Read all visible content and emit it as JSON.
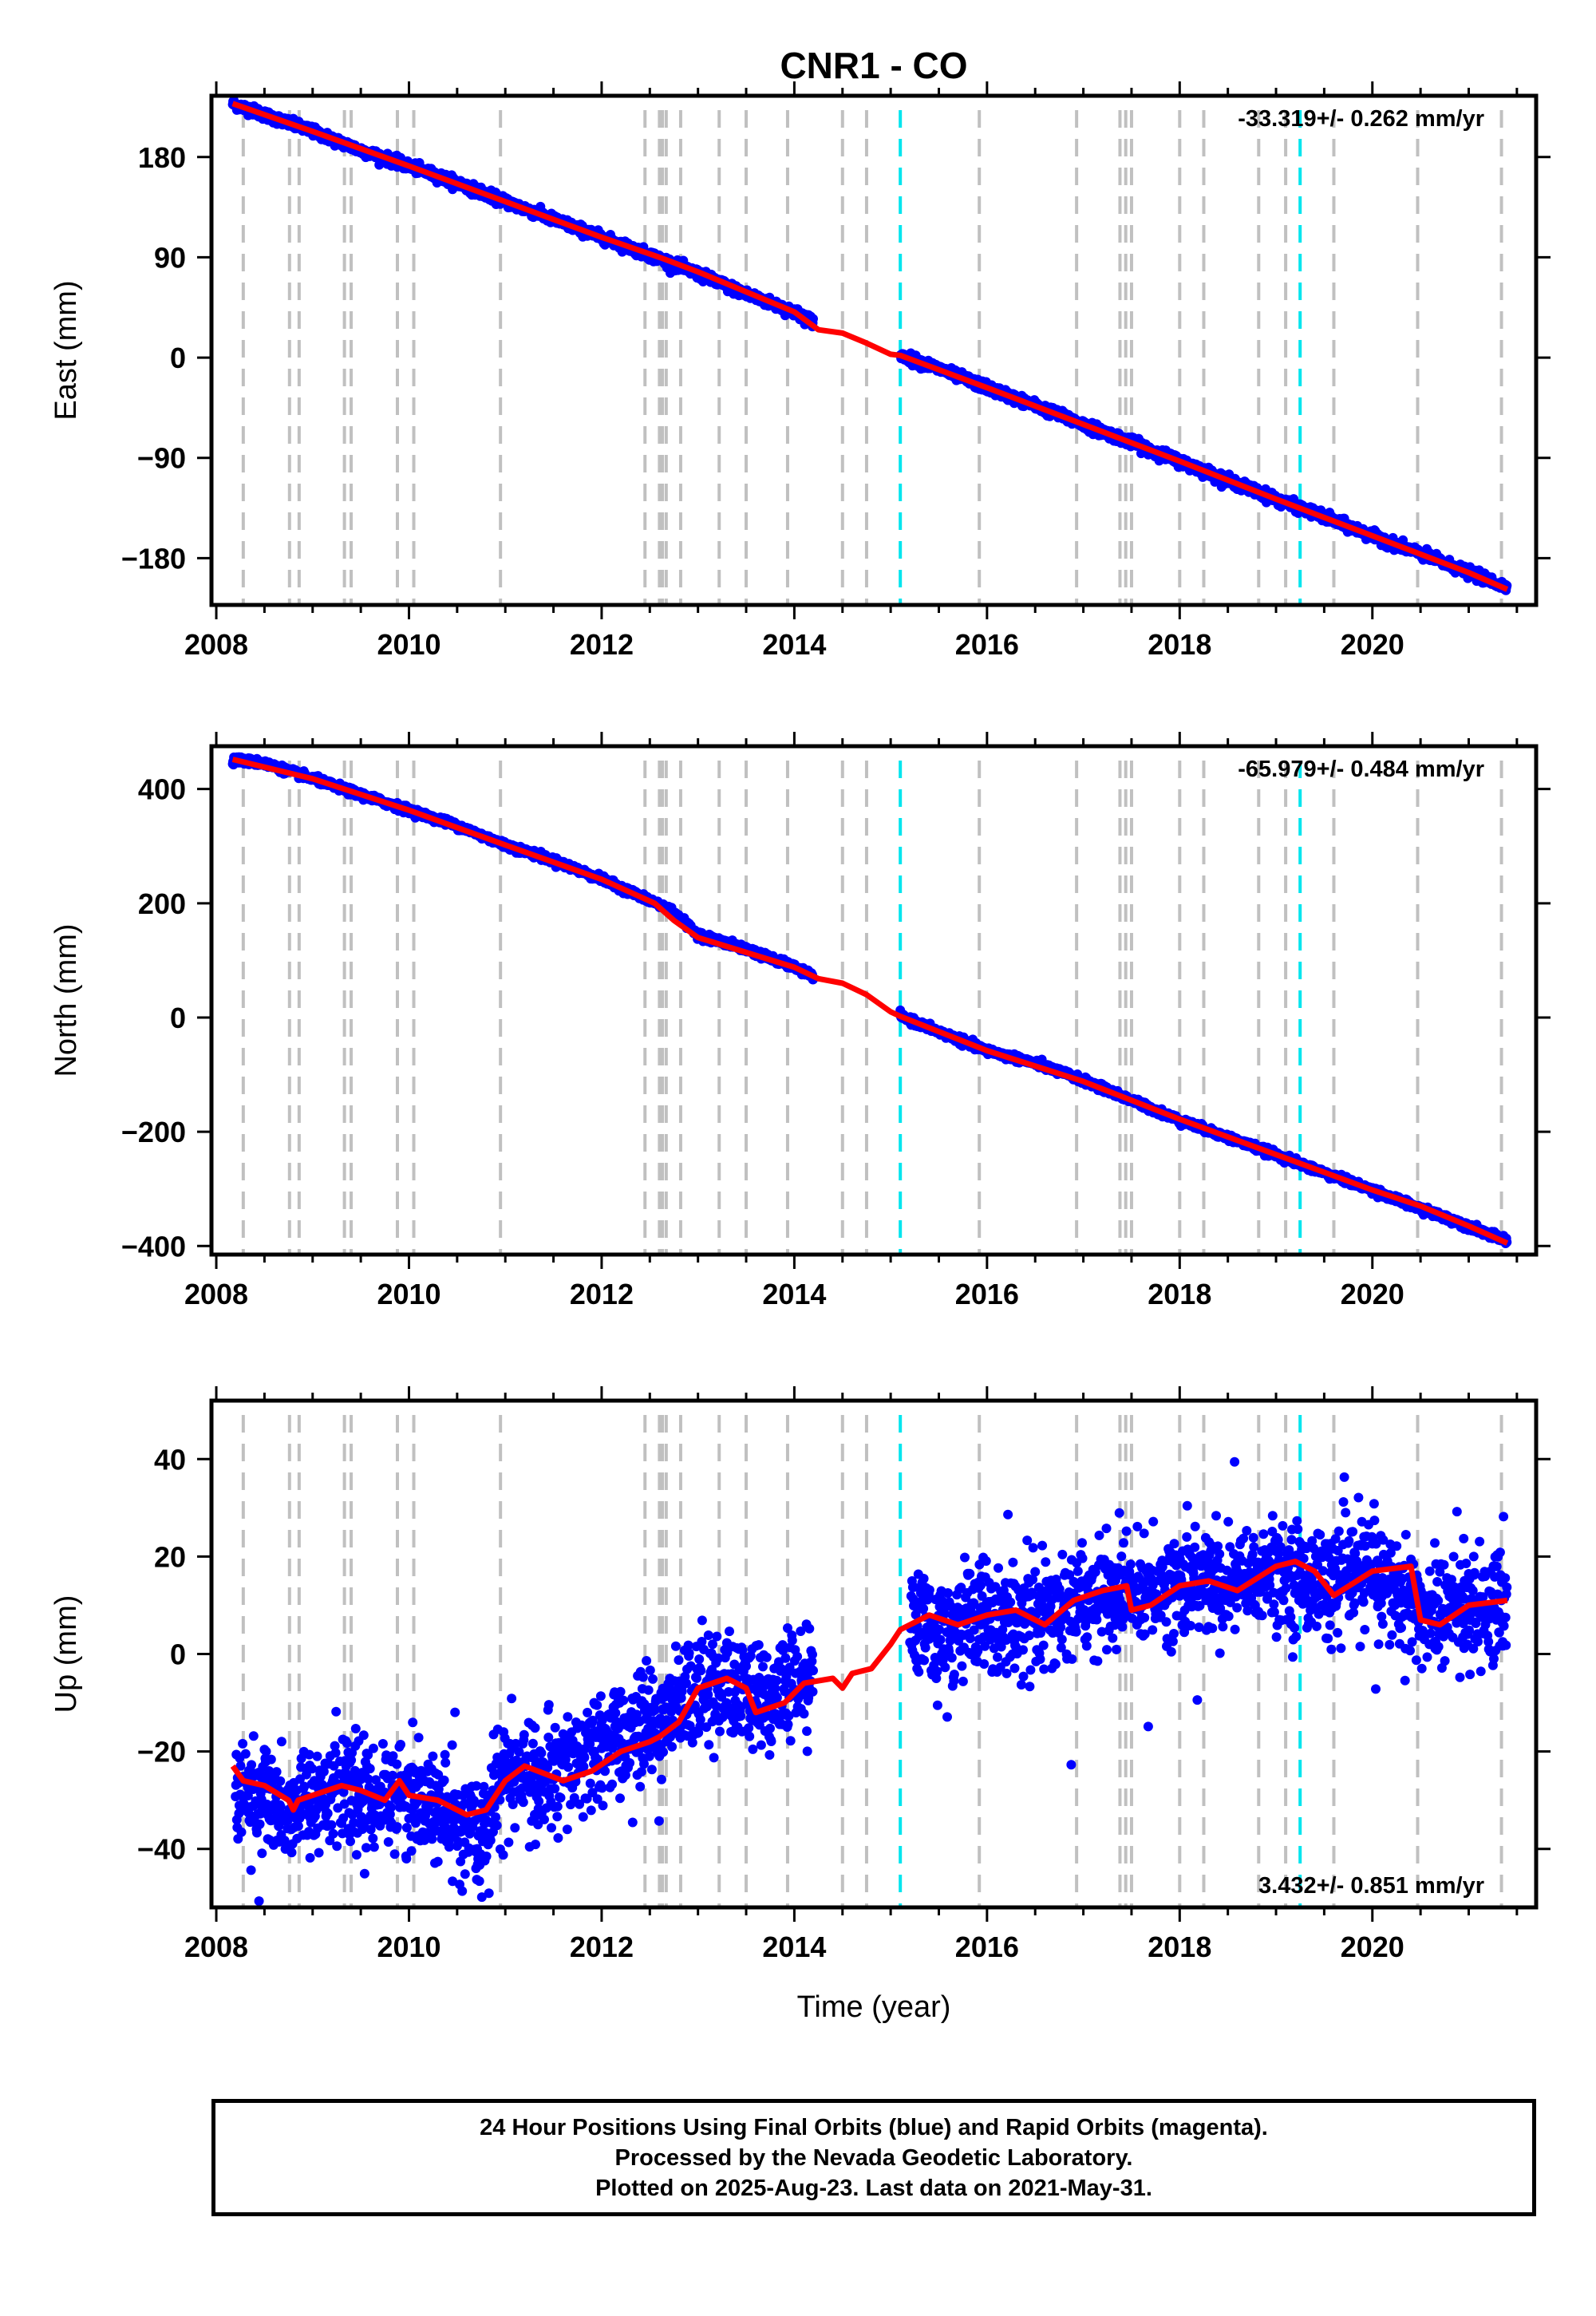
{
  "title": "CNR1 - CO",
  "footer": {
    "line1": "24 Hour Positions Using Final Orbits (blue) and Rapid Orbits (magenta).",
    "line2": "Processed by the Nevada Geodetic Laboratory.",
    "line3": "Plotted on 2025-Aug-23. Last data on 2021-May-31."
  },
  "colors": {
    "final_points": "#0000ff",
    "model_line": "#ff0000",
    "equipment_change": "#c0c0c0",
    "earthquake_event": "#00e5ee"
  },
  "chart_data": [
    {
      "type": "scatter",
      "ylabel": "East (mm)",
      "xlabel": "",
      "xlim": [
        2007.95,
        2021.7
      ],
      "ylim": [
        -222,
        235
      ],
      "x_ticks": [
        2008,
        2010,
        2012,
        2014,
        2016,
        2018,
        2020
      ],
      "y_ticks": [
        -180,
        -90,
        0,
        90,
        180
      ],
      "rate": "-33.319+/- 0.262 mm/yr",
      "rate_position": "top-right",
      "series": [
        {
          "values": [
            [
              2008.17,
              228
            ],
            [
              2008.5,
              218
            ],
            [
              2009.0,
              203
            ],
            [
              2009.5,
              186
            ],
            [
              2010.0,
              172
            ],
            [
              2010.5,
              157
            ],
            [
              2011.0,
              140
            ],
            [
              2011.5,
              124
            ],
            [
              2012.0,
              108
            ],
            [
              2012.5,
              92
            ],
            [
              2013.0,
              75
            ],
            [
              2013.5,
              57
            ],
            [
              2014.0,
              41
            ],
            [
              2014.2,
              32
            ],
            [
              2015.1,
              2
            ],
            [
              2015.5,
              -10
            ],
            [
              2016.0,
              -27
            ],
            [
              2016.5,
              -43
            ],
            [
              2017.0,
              -60
            ],
            [
              2017.5,
              -76
            ],
            [
              2018.0,
              -93
            ],
            [
              2018.5,
              -110
            ],
            [
              2019.0,
              -127
            ],
            [
              2019.5,
              -143
            ],
            [
              2020.0,
              -160
            ],
            [
              2020.5,
              -176
            ],
            [
              2021.0,
              -193
            ],
            [
              2021.4,
              -206
            ]
          ]
        },
        {
          "values": [
            [
              2008.17,
              228
            ],
            [
              2009.0,
              203
            ],
            [
              2010.0,
              172
            ],
            [
              2011.0,
              140
            ],
            [
              2012.0,
              108
            ],
            [
              2012.6,
              90
            ],
            [
              2013.0,
              77
            ],
            [
              2014.0,
              41
            ],
            [
              2014.25,
              25
            ],
            [
              2014.5,
              22
            ],
            [
              2014.75,
              13
            ],
            [
              2015.0,
              3
            ],
            [
              2015.1,
              2
            ],
            [
              2016.0,
              -27
            ],
            [
              2017.0,
              -60
            ],
            [
              2018.0,
              -93
            ],
            [
              2019.0,
              -127
            ],
            [
              2020.0,
              -160
            ],
            [
              2021.0,
              -193
            ],
            [
              2021.4,
              -208
            ]
          ]
        }
      ]
    },
    {
      "type": "scatter",
      "ylabel": "North (mm)",
      "xlabel": "",
      "xlim": [
        2007.95,
        2021.7
      ],
      "ylim": [
        -415,
        475
      ],
      "x_ticks": [
        2008,
        2010,
        2012,
        2014,
        2016,
        2018,
        2020
      ],
      "y_ticks": [
        -400,
        -200,
        0,
        200,
        400
      ],
      "rate": "-65.979+/- 0.484 mm/yr",
      "rate_position": "top-right",
      "series": [
        {
          "values": [
            [
              2008.17,
              452
            ],
            [
              2008.5,
              445
            ],
            [
              2009.0,
              418
            ],
            [
              2009.5,
              390
            ],
            [
              2010.0,
              363
            ],
            [
              2010.5,
              336
            ],
            [
              2011.0,
              302
            ],
            [
              2011.5,
              275
            ],
            [
              2012.0,
              242
            ],
            [
              2012.5,
              205
            ],
            [
              2012.7,
              190
            ],
            [
              2013.0,
              145
            ],
            [
              2013.5,
              120
            ],
            [
              2014.0,
              88
            ],
            [
              2014.2,
              72
            ],
            [
              2015.1,
              2
            ],
            [
              2015.5,
              -25
            ],
            [
              2016.0,
              -58
            ],
            [
              2016.5,
              -80
            ],
            [
              2017.0,
              -110
            ],
            [
              2017.5,
              -145
            ],
            [
              2018.0,
              -180
            ],
            [
              2018.5,
              -210
            ],
            [
              2019.0,
              -240
            ],
            [
              2019.5,
              -272
            ],
            [
              2020.0,
              -302
            ],
            [
              2020.5,
              -335
            ],
            [
              2021.0,
              -365
            ],
            [
              2021.4,
              -392
            ]
          ]
        },
        {
          "values": [
            [
              2008.17,
              452
            ],
            [
              2009.0,
              418
            ],
            [
              2010.0,
              363
            ],
            [
              2011.0,
              302
            ],
            [
              2012.0,
              242
            ],
            [
              2012.55,
              200
            ],
            [
              2012.75,
              170
            ],
            [
              2013.0,
              140
            ],
            [
              2014.0,
              88
            ],
            [
              2014.25,
              68
            ],
            [
              2014.5,
              60
            ],
            [
              2014.75,
              40
            ],
            [
              2015.0,
              10
            ],
            [
              2015.1,
              2
            ],
            [
              2016.0,
              -58
            ],
            [
              2017.0,
              -112
            ],
            [
              2018.0,
              -178
            ],
            [
              2019.0,
              -240
            ],
            [
              2020.0,
              -302
            ],
            [
              2020.5,
              -330
            ],
            [
              2021.0,
              -365
            ],
            [
              2021.4,
              -395
            ]
          ]
        }
      ]
    },
    {
      "type": "scatter",
      "ylabel": "Up (mm)",
      "xlabel": "Time (year)",
      "xlim": [
        2007.95,
        2021.7
      ],
      "ylim": [
        -52,
        52
      ],
      "x_ticks": [
        2008,
        2010,
        2012,
        2014,
        2016,
        2018,
        2020
      ],
      "y_ticks": [
        -40,
        -20,
        0,
        20,
        40
      ],
      "rate": "3.432+/- 0.851 mm/yr",
      "rate_position": "bottom-right",
      "series": [
        {
          "values": [
            [
              2008.2,
              -28
            ],
            [
              2008.5,
              -30
            ],
            [
              2008.9,
              -31
            ],
            [
              2009.2,
              -28
            ],
            [
              2009.6,
              -30
            ],
            [
              2009.9,
              -28
            ],
            [
              2010.3,
              -32
            ],
            [
              2010.7,
              -38
            ],
            [
              2011.0,
              -24
            ],
            [
              2011.4,
              -26
            ],
            [
              2011.8,
              -22
            ],
            [
              2012.2,
              -17
            ],
            [
              2012.6,
              -14
            ],
            [
              2013.0,
              -6
            ],
            [
              2013.4,
              -8
            ],
            [
              2013.8,
              -9
            ],
            [
              2014.2,
              -5
            ],
            [
              2015.2,
              5
            ],
            [
              2015.6,
              5
            ],
            [
              2016.0,
              8
            ],
            [
              2016.5,
              6
            ],
            [
              2017.0,
              12
            ],
            [
              2017.5,
              12
            ],
            [
              2018.0,
              15
            ],
            [
              2018.5,
              14
            ],
            [
              2019.0,
              17
            ],
            [
              2019.5,
              14
            ],
            [
              2020.0,
              17
            ],
            [
              2020.5,
              8
            ],
            [
              2021.0,
              10
            ],
            [
              2021.4,
              10
            ]
          ]
        },
        {
          "values": [
            [
              2008.17,
              -23
            ],
            [
              2008.28,
              -26
            ],
            [
              2008.5,
              -27
            ],
            [
              2008.75,
              -30
            ],
            [
              2008.8,
              -32
            ],
            [
              2008.85,
              -30
            ],
            [
              2009.3,
              -27
            ],
            [
              2009.5,
              -28
            ],
            [
              2009.75,
              -30
            ],
            [
              2009.9,
              -26
            ],
            [
              2010.0,
              -29
            ],
            [
              2010.3,
              -30
            ],
            [
              2010.6,
              -33
            ],
            [
              2010.8,
              -32
            ],
            [
              2011.0,
              -26
            ],
            [
              2011.2,
              -23
            ],
            [
              2011.6,
              -26
            ],
            [
              2011.9,
              -24
            ],
            [
              2012.2,
              -20
            ],
            [
              2012.5,
              -18
            ],
            [
              2012.6,
              -17
            ],
            [
              2012.8,
              -14
            ],
            [
              2013.0,
              -7
            ],
            [
              2013.3,
              -5
            ],
            [
              2013.5,
              -7
            ],
            [
              2013.6,
              -12
            ],
            [
              2013.9,
              -10
            ],
            [
              2014.1,
              -6
            ],
            [
              2014.4,
              -5
            ],
            [
              2014.5,
              -7
            ],
            [
              2014.6,
              -4
            ],
            [
              2014.8,
              -3
            ],
            [
              2015.0,
              2
            ],
            [
              2015.1,
              5
            ],
            [
              2015.4,
              8
            ],
            [
              2015.7,
              6
            ],
            [
              2016.0,
              8
            ],
            [
              2016.3,
              9
            ],
            [
              2016.6,
              6
            ],
            [
              2016.9,
              11
            ],
            [
              2017.2,
              13
            ],
            [
              2017.45,
              14
            ],
            [
              2017.5,
              9
            ],
            [
              2017.7,
              10
            ],
            [
              2018.0,
              14
            ],
            [
              2018.3,
              15
            ],
            [
              2018.6,
              13
            ],
            [
              2019.0,
              18
            ],
            [
              2019.2,
              19
            ],
            [
              2019.4,
              17
            ],
            [
              2019.6,
              12
            ],
            [
              2020.0,
              17
            ],
            [
              2020.4,
              18
            ],
            [
              2020.5,
              7
            ],
            [
              2020.7,
              6
            ],
            [
              2021.0,
              10
            ],
            [
              2021.4,
              11
            ]
          ]
        }
      ]
    }
  ],
  "events": {
    "equipment_years": [
      2008.28,
      2008.76,
      2008.86,
      2009.33,
      2009.4,
      2009.88,
      2010.05,
      2010.95,
      2012.45,
      2012.6,
      2012.63,
      2012.67,
      2012.82,
      2013.22,
      2013.5,
      2013.93,
      2014.5,
      2014.75,
      2015.92,
      2016.93,
      2017.38,
      2017.44,
      2017.5,
      2018.0,
      2018.25,
      2018.82,
      2019.1,
      2019.6,
      2020.47,
      2021.34
    ],
    "earthquake_years": [
      2015.1,
      2019.25
    ]
  }
}
